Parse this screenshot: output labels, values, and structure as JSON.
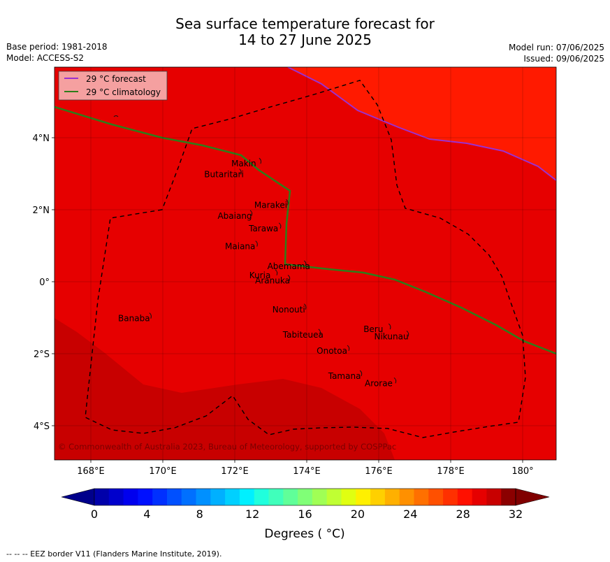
{
  "header": {
    "title_line1": "Sea surface temperature forecast for",
    "title_line2": "14 to 27 June 2025",
    "base_period": "Base period: 1981-2018",
    "model": "Model: ACCESS-S2",
    "model_run": "Model run: 07/06/2025",
    "issued": "Issued: 09/06/2025"
  },
  "map": {
    "lon_ticks": [
      "168°E",
      "170°E",
      "172°E",
      "174°E",
      "176°E",
      "178°E",
      "180°"
    ],
    "lat_ticks": [
      "4°N",
      "2°N",
      "0°",
      "2°S",
      "4°S"
    ],
    "copyright": "© Commonwealth of Australia 2023, Bureau of Meteorology, supported by COSPPac",
    "colors": {
      "sst_28_30": "#e60000",
      "sst_30_31": "#ff1a00",
      "sst_31_32": "#c80000",
      "forecast_line": "#9b30d0",
      "climatology_line": "#2e7d1a",
      "legend_bg": "#f5a0a0"
    },
    "legend": [
      {
        "label": "29 °C  forecast",
        "color": "#9b30d0"
      },
      {
        "label": "29 °C  climatology",
        "color": "#2e7d1a"
      }
    ],
    "places": [
      {
        "name": "Makin",
        "lon": 172.25,
        "lat": 3.2
      },
      {
        "name": "Butaritari",
        "lon": 171.7,
        "lat": 2.9
      },
      {
        "name": "Marakei",
        "lon": 173.0,
        "lat": 2.05
      },
      {
        "name": "Abaiang",
        "lon": 172.0,
        "lat": 1.75
      },
      {
        "name": "Tarawa",
        "lon": 172.8,
        "lat": 1.4
      },
      {
        "name": "Maiana",
        "lon": 172.15,
        "lat": 0.9
      },
      {
        "name": "Abemama",
        "lon": 173.5,
        "lat": 0.35
      },
      {
        "name": "Kuria",
        "lon": 172.7,
        "lat": 0.1
      },
      {
        "name": "Aranuka",
        "lon": 173.05,
        "lat": -0.05
      },
      {
        "name": "Nonouti",
        "lon": 173.5,
        "lat": -0.85
      },
      {
        "name": "Banaba",
        "lon": 169.2,
        "lat": -1.1
      },
      {
        "name": "Beru",
        "lon": 175.85,
        "lat": -1.4
      },
      {
        "name": "Nikunau",
        "lon": 176.35,
        "lat": -1.6
      },
      {
        "name": "Tabiteuea",
        "lon": 173.9,
        "lat": -1.55
      },
      {
        "name": "Onotoa",
        "lon": 174.7,
        "lat": -2.0
      },
      {
        "name": "Tamana",
        "lon": 175.05,
        "lat": -2.7
      },
      {
        "name": "Arorae",
        "lon": 176.0,
        "lat": -2.9
      }
    ]
  },
  "colorbar": {
    "ticks": [
      "0",
      "4",
      "8",
      "12",
      "16",
      "20",
      "24",
      "28",
      "32"
    ],
    "label": "Degrees ( °C)",
    "colors": [
      "#0000aa",
      "#0000cc",
      "#0000ee",
      "#0010ff",
      "#0030ff",
      "#0050ff",
      "#0070ff",
      "#0090ff",
      "#00b0ff",
      "#00d0ff",
      "#00f0ff",
      "#20ffdd",
      "#40ffbb",
      "#60ff99",
      "#80ff77",
      "#a0ff55",
      "#c0ff33",
      "#e0ff11",
      "#fff000",
      "#ffd000",
      "#ffb000",
      "#ff9000",
      "#ff7000",
      "#ff5000",
      "#ff3000",
      "#ff1000",
      "#e60000",
      "#c80000",
      "#8b0000"
    ],
    "min_color": "#00008b",
    "max_color": "#800000"
  },
  "footer": {
    "note": "--  --  -- EEZ border V11 (Flanders Marine Institute, 2019)."
  }
}
